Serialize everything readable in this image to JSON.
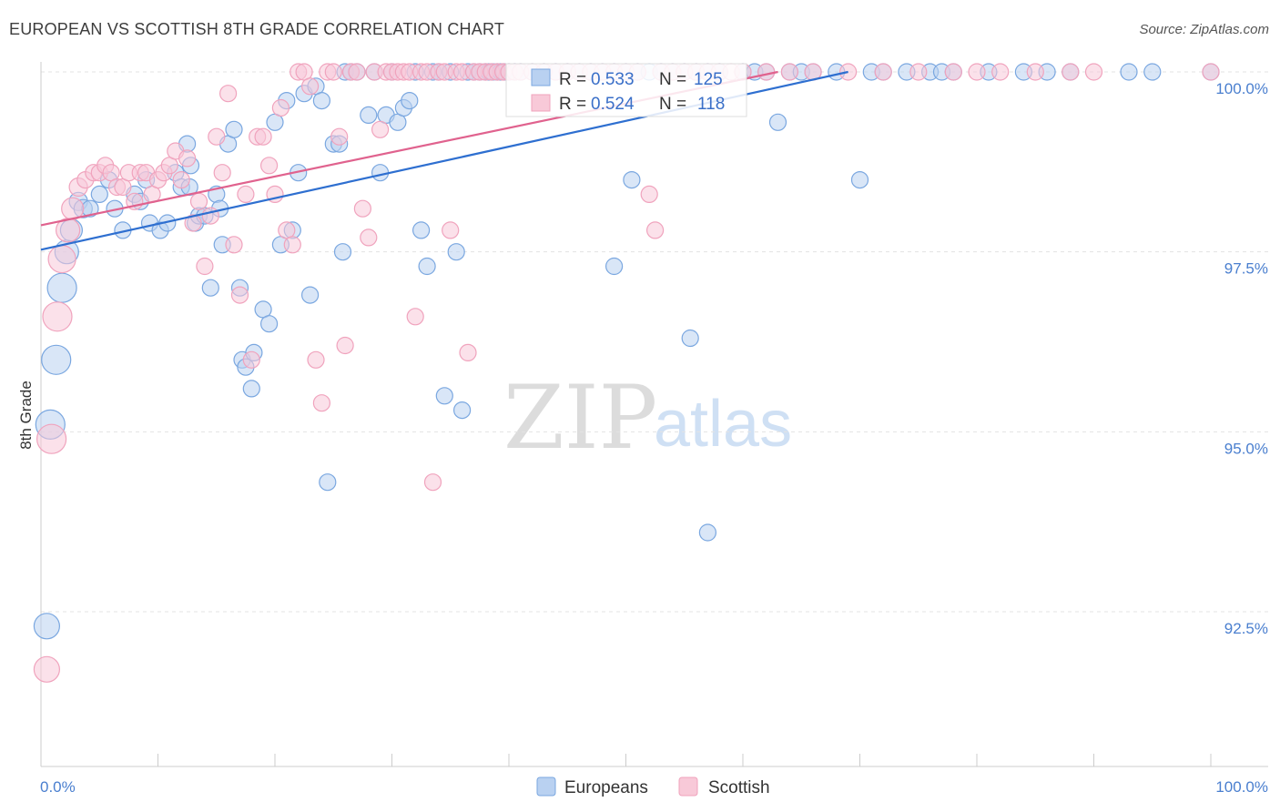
{
  "title": "EUROPEAN VS SCOTTISH 8TH GRADE CORRELATION CHART",
  "source": "Source: ZipAtlas.com",
  "watermark": {
    "zip": "ZIP",
    "atlas": "atlas"
  },
  "chart_data": {
    "type": "scatter",
    "ylabel": "8th Grade",
    "xlim": [
      0,
      100
    ],
    "ylim": [
      90.0,
      100.5
    ],
    "y_ticks": [
      {
        "v": 100.0,
        "label": "100.0%"
      },
      {
        "v": 97.5,
        "label": "97.5%"
      },
      {
        "v": 95.0,
        "label": "95.0%"
      },
      {
        "v": 92.5,
        "label": "92.5%"
      }
    ],
    "x_tick_labels": {
      "left": "0.0%",
      "right": "100.0%"
    },
    "legend": {
      "r_label": "R =",
      "n_label": "N =",
      "rows": [
        {
          "name": "Europeans",
          "r": "0.533",
          "n": "125"
        },
        {
          "name": "Scottish",
          "r": "0.524",
          "n": "118"
        }
      ]
    },
    "series": [
      {
        "name": "Europeans",
        "color": "#7aa7e0",
        "fill": "#b9d1f1",
        "line_color": "#2e6fd0",
        "trend": {
          "x0": 0,
          "y0": 97.53,
          "x1": 69,
          "y1": 100.0
        },
        "points": [
          [
            0.5,
            92.3,
            14
          ],
          [
            0.8,
            95.1,
            16
          ],
          [
            1.3,
            96.0,
            16
          ],
          [
            1.8,
            97.0,
            16
          ],
          [
            2.2,
            97.5,
            13
          ],
          [
            2.6,
            97.8,
            12
          ],
          [
            3.2,
            98.2,
            10
          ],
          [
            3.6,
            98.1,
            10
          ],
          [
            4.2,
            98.1,
            9
          ],
          [
            5.0,
            98.3,
            9
          ],
          [
            5.8,
            98.5,
            9
          ],
          [
            6.3,
            98.1,
            9
          ],
          [
            7.0,
            97.8,
            9
          ],
          [
            8.0,
            98.3,
            9
          ],
          [
            8.5,
            98.2,
            9
          ],
          [
            9.0,
            98.5,
            9
          ],
          [
            9.3,
            97.9,
            9
          ],
          [
            10.2,
            97.8,
            9
          ],
          [
            10.8,
            97.9,
            9
          ],
          [
            11.5,
            98.6,
            9
          ],
          [
            12.0,
            98.4,
            9
          ],
          [
            12.5,
            99.0,
            9
          ],
          [
            12.8,
            98.7,
            9
          ],
          [
            12.7,
            98.4,
            9
          ],
          [
            13.2,
            97.9,
            9
          ],
          [
            13.5,
            98.0,
            9
          ],
          [
            14.0,
            98.0,
            9
          ],
          [
            14.5,
            97.0,
            9
          ],
          [
            15.0,
            98.3,
            9
          ],
          [
            15.3,
            98.1,
            9
          ],
          [
            15.5,
            97.6,
            9
          ],
          [
            16.0,
            99.0,
            9
          ],
          [
            16.5,
            99.2,
            9
          ],
          [
            17.0,
            97.0,
            9
          ],
          [
            17.2,
            96.0,
            9
          ],
          [
            17.5,
            95.9,
            9
          ],
          [
            18.0,
            95.6,
            9
          ],
          [
            18.2,
            96.1,
            9
          ],
          [
            19.0,
            96.7,
            9
          ],
          [
            19.5,
            96.5,
            9
          ],
          [
            20.0,
            99.3,
            9
          ],
          [
            20.5,
            97.6,
            9
          ],
          [
            21.0,
            99.6,
            9
          ],
          [
            21.5,
            97.8,
            9
          ],
          [
            22.0,
            98.6,
            9
          ],
          [
            22.5,
            99.7,
            9
          ],
          [
            23.0,
            96.9,
            9
          ],
          [
            23.5,
            99.8,
            9
          ],
          [
            24.0,
            99.6,
            9
          ],
          [
            24.5,
            94.3,
            9
          ],
          [
            25.0,
            99.0,
            9
          ],
          [
            25.5,
            99.0,
            9
          ],
          [
            25.8,
            97.5,
            9
          ],
          [
            26.0,
            100.0,
            9
          ],
          [
            26.5,
            100.0,
            9
          ],
          [
            27.0,
            100.0,
            9
          ],
          [
            28.0,
            99.4,
            9
          ],
          [
            28.5,
            100.0,
            9
          ],
          [
            29.0,
            98.6,
            9
          ],
          [
            29.5,
            99.4,
            9
          ],
          [
            30.0,
            100.0,
            9
          ],
          [
            30.5,
            99.3,
            9
          ],
          [
            31.0,
            99.5,
            9
          ],
          [
            31.5,
            99.6,
            9
          ],
          [
            32.0,
            100.0,
            9
          ],
          [
            32.5,
            97.8,
            9
          ],
          [
            33.0,
            97.3,
            9
          ],
          [
            33.5,
            100.0,
            9
          ],
          [
            34.0,
            100.0,
            9
          ],
          [
            34.5,
            95.5,
            9
          ],
          [
            35.0,
            100.0,
            9
          ],
          [
            35.5,
            97.5,
            9
          ],
          [
            36.0,
            95.3,
            9
          ],
          [
            36.5,
            100.0,
            9
          ],
          [
            37.0,
            100.0,
            9
          ],
          [
            37.5,
            100.0,
            9
          ],
          [
            38.0,
            100.0,
            9
          ],
          [
            38.3,
            100.0,
            9
          ],
          [
            38.6,
            100.0,
            9
          ],
          [
            39.0,
            100.0,
            9
          ],
          [
            39.3,
            100.0,
            9
          ],
          [
            39.6,
            100.0,
            9
          ],
          [
            40.0,
            100.0,
            9
          ],
          [
            40.5,
            100.0,
            9
          ],
          [
            41.0,
            100.0,
            9
          ],
          [
            42.0,
            100.0,
            9
          ],
          [
            43.0,
            100.0,
            9
          ],
          [
            44.0,
            100.0,
            9
          ],
          [
            45.0,
            100.0,
            9
          ],
          [
            46.0,
            100.0,
            9
          ],
          [
            47.0,
            100.0,
            9
          ],
          [
            48.0,
            100.0,
            9
          ],
          [
            49.0,
            100.0,
            9
          ],
          [
            50.0,
            100.0,
            9
          ],
          [
            51.0,
            100.0,
            9
          ],
          [
            52.0,
            100.0,
            9
          ],
          [
            53.0,
            100.0,
            9
          ],
          [
            54.0,
            100.0,
            9
          ],
          [
            55.0,
            100.0,
            9
          ],
          [
            56.0,
            100.0,
            9
          ],
          [
            57.0,
            100.0,
            9
          ],
          [
            58.0,
            100.0,
            9
          ],
          [
            57.0,
            93.6,
            9
          ],
          [
            60.0,
            100.0,
            9
          ],
          [
            61.0,
            100.0,
            9
          ],
          [
            62.0,
            100.0,
            9
          ],
          [
            63.0,
            99.3,
            9
          ],
          [
            64.0,
            100.0,
            9
          ],
          [
            65.0,
            100.0,
            9
          ],
          [
            66.0,
            100.0,
            9
          ],
          [
            68.0,
            100.0,
            9
          ],
          [
            70.0,
            98.5,
            9
          ],
          [
            71.0,
            100.0,
            9
          ],
          [
            72.0,
            100.0,
            9
          ],
          [
            74.0,
            100.0,
            9
          ],
          [
            76.0,
            100.0,
            9
          ],
          [
            77.0,
            100.0,
            9
          ],
          [
            78.0,
            100.0,
            9
          ],
          [
            81.0,
            100.0,
            9
          ],
          [
            84.0,
            100.0,
            9
          ],
          [
            86.0,
            100.0,
            9
          ],
          [
            88.0,
            100.0,
            9
          ],
          [
            93.0,
            100.0,
            9
          ],
          [
            95.0,
            100.0,
            9
          ],
          [
            100.0,
            100.0,
            9
          ],
          [
            49.0,
            97.3,
            9
          ],
          [
            50.5,
            98.5,
            9
          ],
          [
            55.5,
            96.3,
            9
          ]
        ]
      },
      {
        "name": "Scottish",
        "color": "#f0a3bd",
        "fill": "#f8c9d8",
        "line_color": "#e0628e",
        "trend": {
          "x0": 0,
          "y0": 97.87,
          "x1": 63,
          "y1": 100.0
        },
        "points": [
          [
            0.5,
            91.7,
            14
          ],
          [
            0.9,
            94.9,
            16
          ],
          [
            1.4,
            96.6,
            16
          ],
          [
            1.8,
            97.4,
            15
          ],
          [
            2.3,
            97.8,
            13
          ],
          [
            2.7,
            98.1,
            12
          ],
          [
            3.2,
            98.4,
            10
          ],
          [
            3.8,
            98.5,
            9
          ],
          [
            4.5,
            98.6,
            9
          ],
          [
            5.0,
            98.6,
            9
          ],
          [
            5.5,
            98.7,
            9
          ],
          [
            6.0,
            98.6,
            9
          ],
          [
            6.5,
            98.4,
            9
          ],
          [
            7.0,
            98.4,
            9
          ],
          [
            7.5,
            98.6,
            9
          ],
          [
            8.0,
            98.2,
            9
          ],
          [
            8.5,
            98.6,
            9
          ],
          [
            9.0,
            98.6,
            9
          ],
          [
            9.5,
            98.3,
            9
          ],
          [
            10.0,
            98.5,
            9
          ],
          [
            10.5,
            98.6,
            9
          ],
          [
            11.0,
            98.7,
            9
          ],
          [
            11.5,
            98.9,
            9
          ],
          [
            12.0,
            98.5,
            9
          ],
          [
            12.5,
            98.8,
            9
          ],
          [
            13.0,
            97.9,
            9
          ],
          [
            13.5,
            98.2,
            9
          ],
          [
            14.0,
            97.3,
            9
          ],
          [
            14.5,
            98.0,
            9
          ],
          [
            15.0,
            99.1,
            9
          ],
          [
            15.5,
            98.6,
            9
          ],
          [
            16.0,
            99.7,
            9
          ],
          [
            16.5,
            97.6,
            9
          ],
          [
            17.0,
            96.9,
            9
          ],
          [
            17.5,
            98.3,
            9
          ],
          [
            18.0,
            96.0,
            9
          ],
          [
            18.5,
            99.1,
            9
          ],
          [
            19.0,
            99.1,
            9
          ],
          [
            19.5,
            98.7,
            9
          ],
          [
            20.0,
            98.3,
            9
          ],
          [
            20.5,
            99.5,
            9
          ],
          [
            21.0,
            97.8,
            9
          ],
          [
            21.5,
            97.6,
            9
          ],
          [
            22.0,
            100.0,
            9
          ],
          [
            22.5,
            100.0,
            9
          ],
          [
            23.0,
            99.8,
            9
          ],
          [
            23.5,
            96.0,
            9
          ],
          [
            24.0,
            95.4,
            9
          ],
          [
            24.5,
            100.0,
            9
          ],
          [
            25.0,
            100.0,
            9
          ],
          [
            25.5,
            99.1,
            9
          ],
          [
            26.0,
            96.2,
            9
          ],
          [
            26.5,
            100.0,
            9
          ],
          [
            27.0,
            100.0,
            9
          ],
          [
            27.5,
            98.1,
            9
          ],
          [
            28.0,
            97.7,
            9
          ],
          [
            28.5,
            100.0,
            9
          ],
          [
            29.0,
            99.2,
            9
          ],
          [
            29.5,
            100.0,
            9
          ],
          [
            30.0,
            100.0,
            9
          ],
          [
            30.5,
            100.0,
            9
          ],
          [
            31.0,
            100.0,
            9
          ],
          [
            31.5,
            100.0,
            9
          ],
          [
            32.0,
            96.6,
            9
          ],
          [
            32.5,
            100.0,
            9
          ],
          [
            33.0,
            100.0,
            9
          ],
          [
            33.5,
            94.3,
            9
          ],
          [
            34.0,
            100.0,
            9
          ],
          [
            34.5,
            100.0,
            9
          ],
          [
            35.0,
            97.8,
            9
          ],
          [
            35.5,
            100.0,
            9
          ],
          [
            36.0,
            100.0,
            9
          ],
          [
            36.5,
            96.1,
            9
          ],
          [
            37.0,
            100.0,
            9
          ],
          [
            37.5,
            100.0,
            9
          ],
          [
            38.0,
            100.0,
            9
          ],
          [
            38.5,
            100.0,
            9
          ],
          [
            39.0,
            100.0,
            9
          ],
          [
            39.5,
            100.0,
            9
          ],
          [
            40.0,
            100.0,
            9
          ],
          [
            40.5,
            100.0,
            9
          ],
          [
            41.0,
            100.0,
            9
          ],
          [
            42.0,
            100.0,
            9
          ],
          [
            43.0,
            100.0,
            9
          ],
          [
            44.0,
            100.0,
            9
          ],
          [
            45.0,
            100.0,
            9
          ],
          [
            46.0,
            100.0,
            9
          ],
          [
            47.0,
            100.0,
            9
          ],
          [
            48.0,
            100.0,
            9
          ],
          [
            49.0,
            100.0,
            9
          ],
          [
            50.0,
            100.0,
            9
          ],
          [
            51.0,
            100.0,
            9
          ],
          [
            52.0,
            98.3,
            9
          ],
          [
            52.5,
            97.8,
            9
          ],
          [
            53.0,
            100.0,
            9
          ],
          [
            54.0,
            100.0,
            9
          ],
          [
            55.0,
            100.0,
            9
          ],
          [
            56.0,
            100.0,
            9
          ],
          [
            57.0,
            100.0,
            9
          ],
          [
            58.0,
            100.0,
            9
          ],
          [
            59.0,
            100.0,
            9
          ],
          [
            60.0,
            100.0,
            9
          ],
          [
            62.0,
            100.0,
            9
          ],
          [
            64.0,
            100.0,
            9
          ],
          [
            66.0,
            100.0,
            9
          ],
          [
            69.0,
            100.0,
            9
          ],
          [
            72.0,
            100.0,
            9
          ],
          [
            75.0,
            100.0,
            9
          ],
          [
            78.0,
            100.0,
            9
          ],
          [
            80.0,
            100.0,
            9
          ],
          [
            82.0,
            100.0,
            9
          ],
          [
            85.0,
            100.0,
            9
          ],
          [
            88.0,
            100.0,
            9
          ],
          [
            90.0,
            100.0,
            9
          ],
          [
            100.0,
            100.0,
            9
          ]
        ]
      }
    ]
  }
}
